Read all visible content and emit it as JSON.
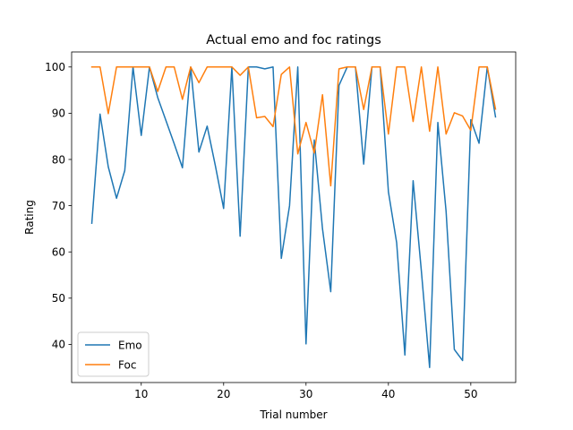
{
  "chart_data": {
    "type": "line",
    "title": "Actual emo and foc ratings",
    "xlabel": "Trial number",
    "ylabel": "Rating",
    "xlim": [
      1.55,
      55.45
    ],
    "ylim": [
      31.75,
      103.25
    ],
    "xticks": [
      10,
      20,
      30,
      40,
      50
    ],
    "yticks": [
      40,
      50,
      60,
      70,
      80,
      90,
      100
    ],
    "grid": false,
    "legend_position": "lower left",
    "x": [
      4,
      5,
      6,
      7,
      8,
      9,
      10,
      11,
      12,
      13,
      14,
      15,
      16,
      17,
      18,
      19,
      20,
      21,
      22,
      23,
      24,
      25,
      26,
      27,
      28,
      29,
      30,
      31,
      32,
      33,
      34,
      35,
      36,
      37,
      38,
      39,
      40,
      41,
      42,
      43,
      44,
      45,
      46,
      47,
      48,
      49,
      50,
      51,
      52,
      53
    ],
    "series": [
      {
        "name": "Emo",
        "color": "#1f77b4",
        "values": [
          66.2,
          89.8,
          78.4,
          71.6,
          77.6,
          100,
          85.2,
          100,
          93.4,
          88.4,
          83.4,
          78.2,
          100,
          81.6,
          87.2,
          78.6,
          69.4,
          100,
          63.4,
          100,
          100,
          99.6,
          100,
          58.6,
          70,
          100,
          40.1,
          84.2,
          65,
          51.4,
          96,
          100,
          100,
          79,
          100,
          100,
          73,
          62,
          37.7,
          75.4,
          55.9,
          35,
          88,
          68.8,
          38.9,
          36.5,
          88.6,
          83.5,
          100,
          89.2
        ]
      },
      {
        "name": "Foc",
        "color": "#ff7f0e",
        "values": [
          100,
          100,
          89.9,
          100,
          100,
          100,
          100,
          100,
          94.7,
          100,
          100,
          93,
          100,
          96.6,
          100,
          100,
          100,
          100,
          98.2,
          100,
          89,
          89.3,
          87.1,
          98.4,
          100,
          81.2,
          88,
          81.4,
          94,
          74.3,
          99.6,
          100,
          100,
          90.8,
          100,
          100,
          85.5,
          100,
          100,
          88.2,
          100,
          86.1,
          100,
          85.5,
          90.1,
          89.4,
          86.3,
          100,
          100,
          90.9
        ]
      }
    ]
  }
}
